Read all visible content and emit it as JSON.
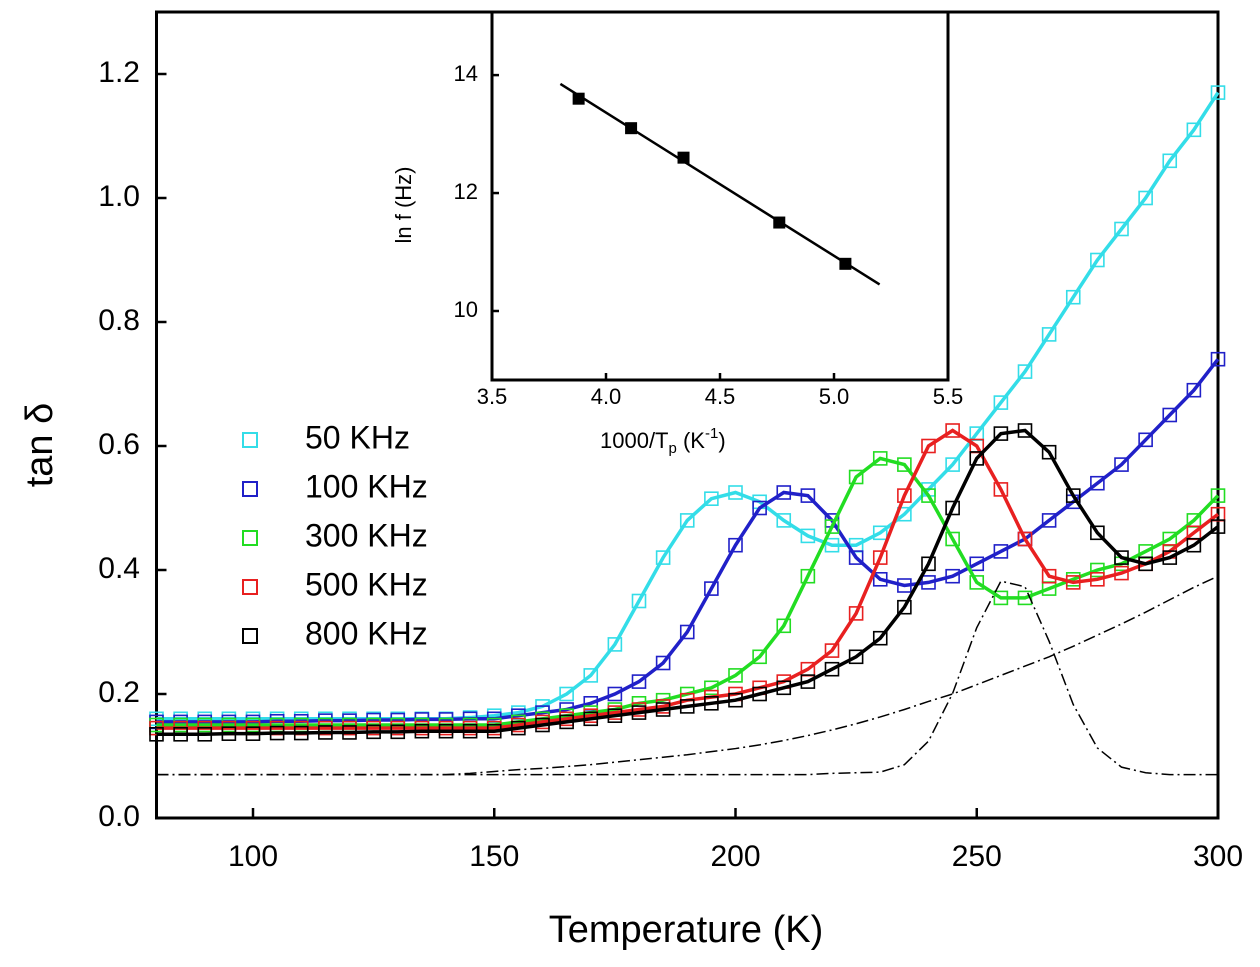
{
  "chart_data": [
    {
      "type": "line",
      "x_label": "Temperature (K)",
      "y_label": "tan δ",
      "xlim": [
        80,
        300
      ],
      "ylim": [
        0,
        1.3
      ],
      "xticks": [
        100,
        150,
        200,
        250,
        300
      ],
      "yticks": [
        {
          "value": 0,
          "label": "0.0"
        },
        0.2,
        0.4,
        0.6,
        0.8,
        {
          "value": 1,
          "label": "1.0"
        },
        1.2
      ],
      "x": [
        80,
        85,
        90,
        95,
        100,
        105,
        110,
        115,
        120,
        125,
        130,
        135,
        140,
        145,
        150,
        155,
        160,
        165,
        170,
        175,
        180,
        185,
        190,
        195,
        200,
        205,
        210,
        215,
        220,
        225,
        230,
        235,
        240,
        245,
        250,
        255,
        260,
        265,
        270,
        275,
        280,
        285,
        290,
        295,
        300
      ],
      "series": [
        {
          "name": "50 KHz",
          "color": "#33dde8",
          "values": [
            0.16,
            0.16,
            0.16,
            0.16,
            0.16,
            0.16,
            0.16,
            0.16,
            0.16,
            0.16,
            0.16,
            0.16,
            0.16,
            0.162,
            0.165,
            0.17,
            0.18,
            0.2,
            0.23,
            0.28,
            0.35,
            0.42,
            0.48,
            0.515,
            0.525,
            0.51,
            0.48,
            0.455,
            0.44,
            0.44,
            0.46,
            0.49,
            0.53,
            0.57,
            0.62,
            0.67,
            0.72,
            0.78,
            0.84,
            0.9,
            0.95,
            1.0,
            1.06,
            1.11,
            1.17
          ]
        },
        {
          "name": "100 KHz",
          "color": "#2020c8",
          "values": [
            0.155,
            0.155,
            0.155,
            0.155,
            0.155,
            0.156,
            0.156,
            0.157,
            0.157,
            0.158,
            0.158,
            0.159,
            0.159,
            0.16,
            0.16,
            0.165,
            0.17,
            0.175,
            0.185,
            0.2,
            0.22,
            0.25,
            0.3,
            0.37,
            0.44,
            0.5,
            0.525,
            0.52,
            0.48,
            0.42,
            0.385,
            0.375,
            0.38,
            0.39,
            0.41,
            0.43,
            0.45,
            0.48,
            0.51,
            0.54,
            0.57,
            0.61,
            0.65,
            0.69,
            0.74
          ]
        },
        {
          "name": "300 KHz",
          "color": "#22dd22",
          "values": [
            0.15,
            0.15,
            0.15,
            0.15,
            0.15,
            0.15,
            0.15,
            0.15,
            0.15,
            0.15,
            0.15,
            0.15,
            0.15,
            0.15,
            0.15,
            0.155,
            0.16,
            0.165,
            0.17,
            0.175,
            0.185,
            0.19,
            0.2,
            0.21,
            0.23,
            0.26,
            0.31,
            0.39,
            0.47,
            0.55,
            0.58,
            0.57,
            0.52,
            0.45,
            0.38,
            0.355,
            0.355,
            0.37,
            0.385,
            0.4,
            0.41,
            0.43,
            0.45,
            0.48,
            0.52
          ]
        },
        {
          "name": "500 KHz",
          "color": "#e82020",
          "values": [
            0.145,
            0.145,
            0.145,
            0.145,
            0.145,
            0.145,
            0.145,
            0.145,
            0.145,
            0.145,
            0.145,
            0.145,
            0.145,
            0.145,
            0.145,
            0.15,
            0.155,
            0.16,
            0.165,
            0.17,
            0.175,
            0.18,
            0.19,
            0.195,
            0.2,
            0.21,
            0.22,
            0.24,
            0.27,
            0.33,
            0.42,
            0.52,
            0.6,
            0.625,
            0.6,
            0.53,
            0.45,
            0.39,
            0.38,
            0.385,
            0.395,
            0.41,
            0.43,
            0.46,
            0.49
          ]
        },
        {
          "name": "800 KHz",
          "color": "#000000",
          "values": [
            0.135,
            0.135,
            0.135,
            0.136,
            0.136,
            0.137,
            0.137,
            0.138,
            0.138,
            0.139,
            0.139,
            0.14,
            0.14,
            0.14,
            0.14,
            0.145,
            0.15,
            0.155,
            0.16,
            0.165,
            0.17,
            0.175,
            0.18,
            0.185,
            0.19,
            0.2,
            0.21,
            0.22,
            0.24,
            0.26,
            0.29,
            0.34,
            0.41,
            0.5,
            0.58,
            0.62,
            0.625,
            0.59,
            0.52,
            0.46,
            0.42,
            0.41,
            0.42,
            0.44,
            0.47
          ]
        },
        {
          "color": "#000000",
          "dash": "dashdot",
          "values": [
            0.07,
            0.07,
            0.07,
            0.07,
            0.07,
            0.07,
            0.07,
            0.07,
            0.07,
            0.07,
            0.07,
            0.07,
            0.07,
            0.072,
            0.075,
            0.078,
            0.08,
            0.083,
            0.086,
            0.09,
            0.094,
            0.098,
            0.102,
            0.107,
            0.112,
            0.118,
            0.125,
            0.133,
            0.142,
            0.152,
            0.163,
            0.175,
            0.188,
            0.2,
            0.215,
            0.23,
            0.245,
            0.26,
            0.277,
            0.295,
            0.313,
            0.332,
            0.352,
            0.372,
            0.39
          ]
        },
        {
          "color": "#000000",
          "dash": "dashdot",
          "values": [
            0.07,
            0.07,
            0.07,
            0.07,
            0.07,
            0.07,
            0.07,
            0.07,
            0.07,
            0.07,
            0.07,
            0.07,
            0.07,
            0.07,
            0.07,
            0.07,
            0.07,
            0.07,
            0.07,
            0.07,
            0.07,
            0.07,
            0.07,
            0.07,
            0.07,
            0.07,
            0.07,
            0.07,
            0.072,
            0.073,
            0.074,
            0.086,
            0.124,
            0.201,
            0.307,
            0.382,
            0.373,
            0.285,
            0.183,
            0.113,
            0.082,
            0.073,
            0.07,
            0.07,
            0.07
          ]
        }
      ]
    },
    {
      "type": "scatter",
      "x_label": [
        "1000/T",
        "p",
        " (K",
        "-1",
        ")"
      ],
      "y_label": "ln f (Hz)",
      "xlim": [
        3.5,
        5.5
      ],
      "ylim": [
        8.83,
        15.07
      ],
      "xticks": [
        3.5,
        {
          "value": 4,
          "label": "4.0"
        },
        4.5,
        {
          "value": 5,
          "label": "5.0"
        },
        5.5
      ],
      "yticks": [
        10,
        12,
        14
      ],
      "series": [
        {
          "color": "#000000",
          "marker": "filled-square",
          "x": [
            3.88,
            4.11,
            4.34,
            4.76,
            5.05
          ],
          "values": [
            13.6,
            13.1,
            12.6,
            11.5,
            10.8
          ]
        },
        {
          "color": "#000000",
          "x": [
            3.8,
            5.2
          ],
          "values": [
            13.85,
            10.45
          ]
        }
      ]
    }
  ]
}
